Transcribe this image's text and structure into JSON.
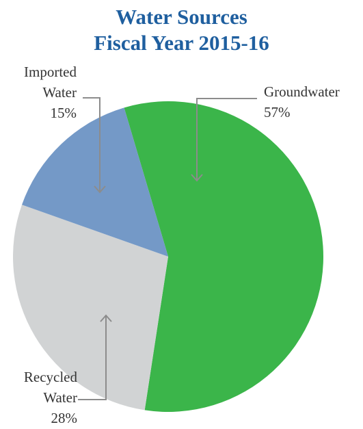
{
  "chart_data": {
    "type": "pie",
    "title_lines": [
      "Water Sources",
      "Fiscal Year 2015-16"
    ],
    "slices": [
      {
        "label_lines": [
          "Groundwater",
          "57%"
        ],
        "value": 57,
        "color": "#3bb54a"
      },
      {
        "label_lines": [
          "Recycled",
          "Water",
          "28%"
        ],
        "value": 28,
        "color": "#d1d3d4"
      },
      {
        "label_lines": [
          "Imported",
          "Water",
          "15%"
        ],
        "value": 15,
        "color": "#7499c7"
      }
    ],
    "legend": "none"
  },
  "colors": {
    "title": "#1f5f9f",
    "label_text": "#333333",
    "leader_line": "#8c8c8c"
  }
}
